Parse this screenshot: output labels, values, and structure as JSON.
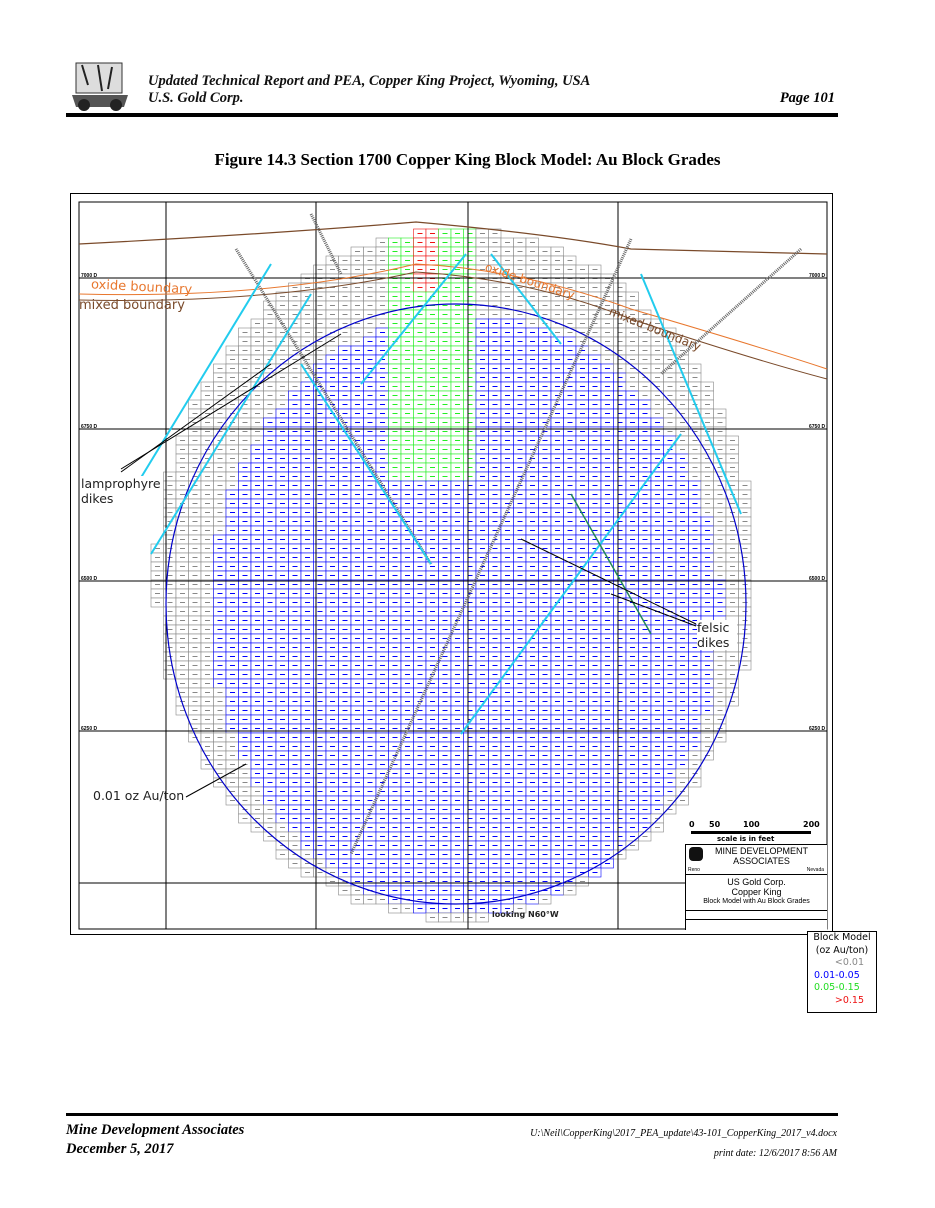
{
  "header": {
    "title": "Updated Technical Report and PEA, Copper King Project, Wyoming, USA",
    "company": "U.S. Gold Corp.",
    "page": "Page 101"
  },
  "figure": {
    "title": "Figure 14.3 Section 1700 Copper King Block Model: Au Block Grades",
    "elevation_labels": [
      "7000 D",
      "6750 D",
      "6500 D",
      "6250 D"
    ],
    "annotations": {
      "oxide": "oxide boundary",
      "mixed": "mixed boundary",
      "lamprophyre": "lamprophyre dikes",
      "felsic": "felsic dikes",
      "contour": "0.01 oz Au/ton",
      "looking": "looking N60°W"
    },
    "legend": {
      "title": "Block Model",
      "units": "(oz Au/ton)",
      "classes": [
        {
          "label": "<0.01",
          "color": "#888888"
        },
        {
          "label": "0.01-0.05",
          "color": "#0000ff"
        },
        {
          "label": "0.05-0.15",
          "color": "#22ee22"
        },
        {
          "label": ">0.15",
          "color": "#ee1111"
        }
      ]
    },
    "scale": {
      "ticks": [
        "0",
        "50",
        "100",
        "200"
      ],
      "caption": "scale is in feet"
    },
    "title_block": {
      "firm": "MINE DEVELOPMENT ASSOCIATES",
      "city": "Reno",
      "state": "Nevada",
      "client": "US Gold Corp.",
      "project": "Copper King",
      "drawing": "Block Model with Au Block Grades"
    }
  },
  "footer": {
    "firm": "Mine Development Associates",
    "date": "December 5, 2017",
    "path": "U:\\Neil\\CopperKing\\2017_PEA_update\\43-101_CopperKing_2017_v4.docx",
    "print_date": "print date: 12/6/2017 8:56 AM"
  }
}
